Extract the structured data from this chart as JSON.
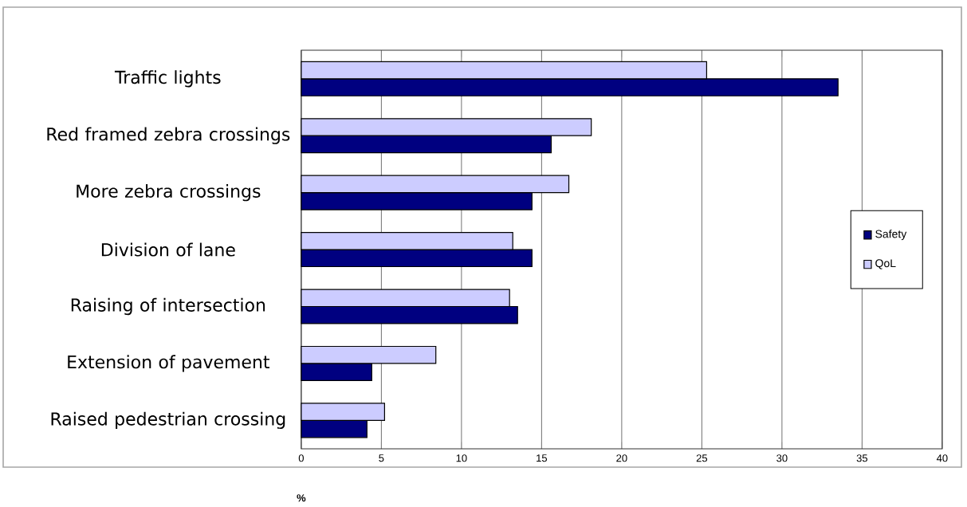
{
  "chart_data": {
    "type": "bar",
    "orientation": "horizontal",
    "xlabel": "%",
    "categories": [
      "Traffic lights",
      "Red framed zebra crossings",
      "More zebra crossings",
      "Division of lane",
      "Raising of intersection",
      "Extension of pavement",
      "Raised pedestrian crossing"
    ],
    "series": [
      {
        "name": "Safety",
        "color": "#000080",
        "values": [
          33.5,
          15.6,
          14.4,
          14.4,
          13.5,
          4.4,
          4.1
        ]
      },
      {
        "name": "QoL",
        "color": "#ccccff",
        "values": [
          25.3,
          18.1,
          16.7,
          13.2,
          13.0,
          8.4,
          5.2
        ]
      }
    ],
    "xlim": [
      0,
      40
    ],
    "xticks": [
      0,
      5,
      10,
      15,
      20,
      25,
      30,
      35,
      40
    ],
    "grid": "x",
    "legend": "right"
  }
}
